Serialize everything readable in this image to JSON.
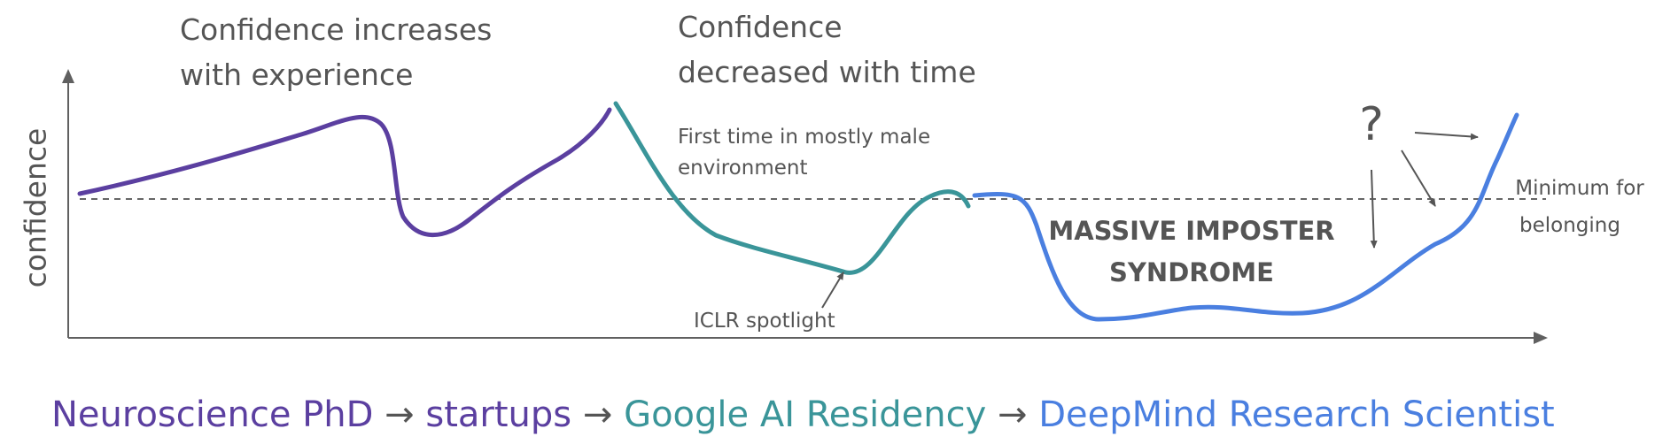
{
  "colors": {
    "phd": "#5b3fa0",
    "residency": "#3a9599",
    "deepmind": "#4a7fe0",
    "text": "#555555",
    "axis": "#606060"
  },
  "labels": {
    "confidence_increases_line1": "Confidence increases",
    "confidence_increases_line2": "with experience",
    "confidence_decreased_line1": "Confidence",
    "confidence_decreased_line2": "decreased with time",
    "first_time_line1": "First time in mostly male",
    "first_time_line2": "environment",
    "iclr": "ICLR spotlight",
    "imposter_line1": "MASSIVE IMPOSTER",
    "imposter_line2": "SYNDROME",
    "question": "?",
    "minimum_line1": "Minimum for",
    "minimum_line2": "belonging",
    "y_axis": "confidence"
  },
  "timeline": {
    "phd": "Neuroscience PhD",
    "arrow1": "→",
    "startups": "startups",
    "arrow2": "→",
    "residency": "Google AI Residency",
    "arrow3": "→",
    "deepmind": "DeepMind Research Scientist"
  }
}
